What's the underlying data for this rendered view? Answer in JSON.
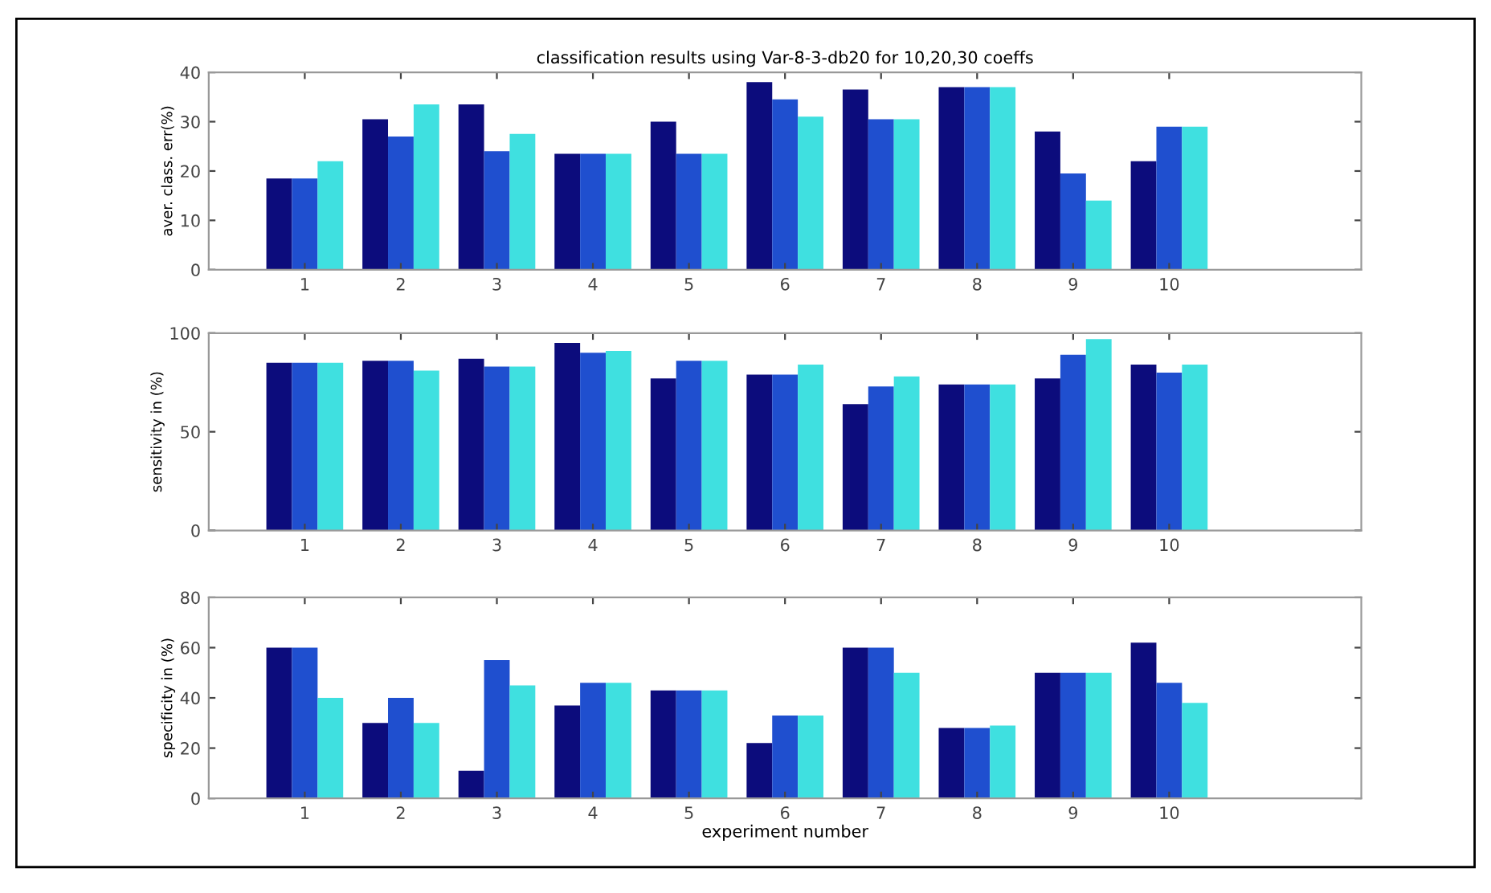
{
  "chart_data": [
    {
      "type": "bar",
      "title": "classification results using Var-8-3-db20 for 10,20,30 coeffs",
      "ylabel": "aver. class. err(%)",
      "x": [
        1,
        2,
        3,
        4,
        5,
        6,
        7,
        8,
        9,
        10
      ],
      "xlim": [
        0,
        12
      ],
      "xticks": [
        1,
        2,
        3,
        4,
        5,
        6,
        7,
        8,
        9,
        10
      ],
      "ylim": [
        0,
        40
      ],
      "yticks": [
        0,
        10,
        20,
        30,
        40
      ],
      "grid": false,
      "series": [
        {
          "color": "#0c0c7c",
          "values": [
            18.5,
            30.5,
            33.5,
            23.5,
            30,
            38,
            36.5,
            37,
            28,
            22
          ]
        },
        {
          "color": "#1f4fcf",
          "values": [
            18.5,
            27,
            24,
            23.5,
            23.5,
            34.5,
            30.5,
            37,
            19.5,
            29
          ]
        },
        {
          "color": "#3fe0e0",
          "values": [
            22,
            33.5,
            27.5,
            23.5,
            23.5,
            31,
            30.5,
            37,
            14,
            29
          ]
        }
      ]
    },
    {
      "type": "bar",
      "ylabel": "sensitivity in (%)",
      "x": [
        1,
        2,
        3,
        4,
        5,
        6,
        7,
        8,
        9,
        10
      ],
      "xlim": [
        0,
        12
      ],
      "xticks": [
        1,
        2,
        3,
        4,
        5,
        6,
        7,
        8,
        9,
        10
      ],
      "ylim": [
        0,
        100
      ],
      "yticks": [
        0,
        50,
        100
      ],
      "grid": false,
      "series": [
        {
          "color": "#0c0c7c",
          "values": [
            85,
            86,
            87,
            95,
            77,
            79,
            64,
            74,
            77,
            84
          ]
        },
        {
          "color": "#1f4fcf",
          "values": [
            85,
            86,
            83,
            90,
            86,
            79,
            73,
            74,
            89,
            80
          ]
        },
        {
          "color": "#3fe0e0",
          "values": [
            85,
            81,
            83,
            91,
            86,
            84,
            78,
            74,
            97,
            84
          ]
        }
      ]
    },
    {
      "type": "bar",
      "xlabel": "experiment number",
      "ylabel": "specificity in (%)",
      "x": [
        1,
        2,
        3,
        4,
        5,
        6,
        7,
        8,
        9,
        10
      ],
      "xlim": [
        0,
        12
      ],
      "xticks": [
        1,
        2,
        3,
        4,
        5,
        6,
        7,
        8,
        9,
        10
      ],
      "ylim": [
        0,
        80
      ],
      "yticks": [
        0,
        20,
        40,
        60,
        80
      ],
      "grid": false,
      "series": [
        {
          "color": "#0c0c7c",
          "values": [
            60,
            30,
            11,
            37,
            43,
            22,
            60,
            28,
            50,
            62
          ]
        },
        {
          "color": "#1f4fcf",
          "values": [
            60,
            40,
            55,
            46,
            43,
            33,
            60,
            28,
            50,
            46
          ]
        },
        {
          "color": "#3fe0e0",
          "values": [
            40,
            30,
            45,
            46,
            43,
            33,
            50,
            29,
            50,
            38
          ]
        }
      ]
    }
  ]
}
